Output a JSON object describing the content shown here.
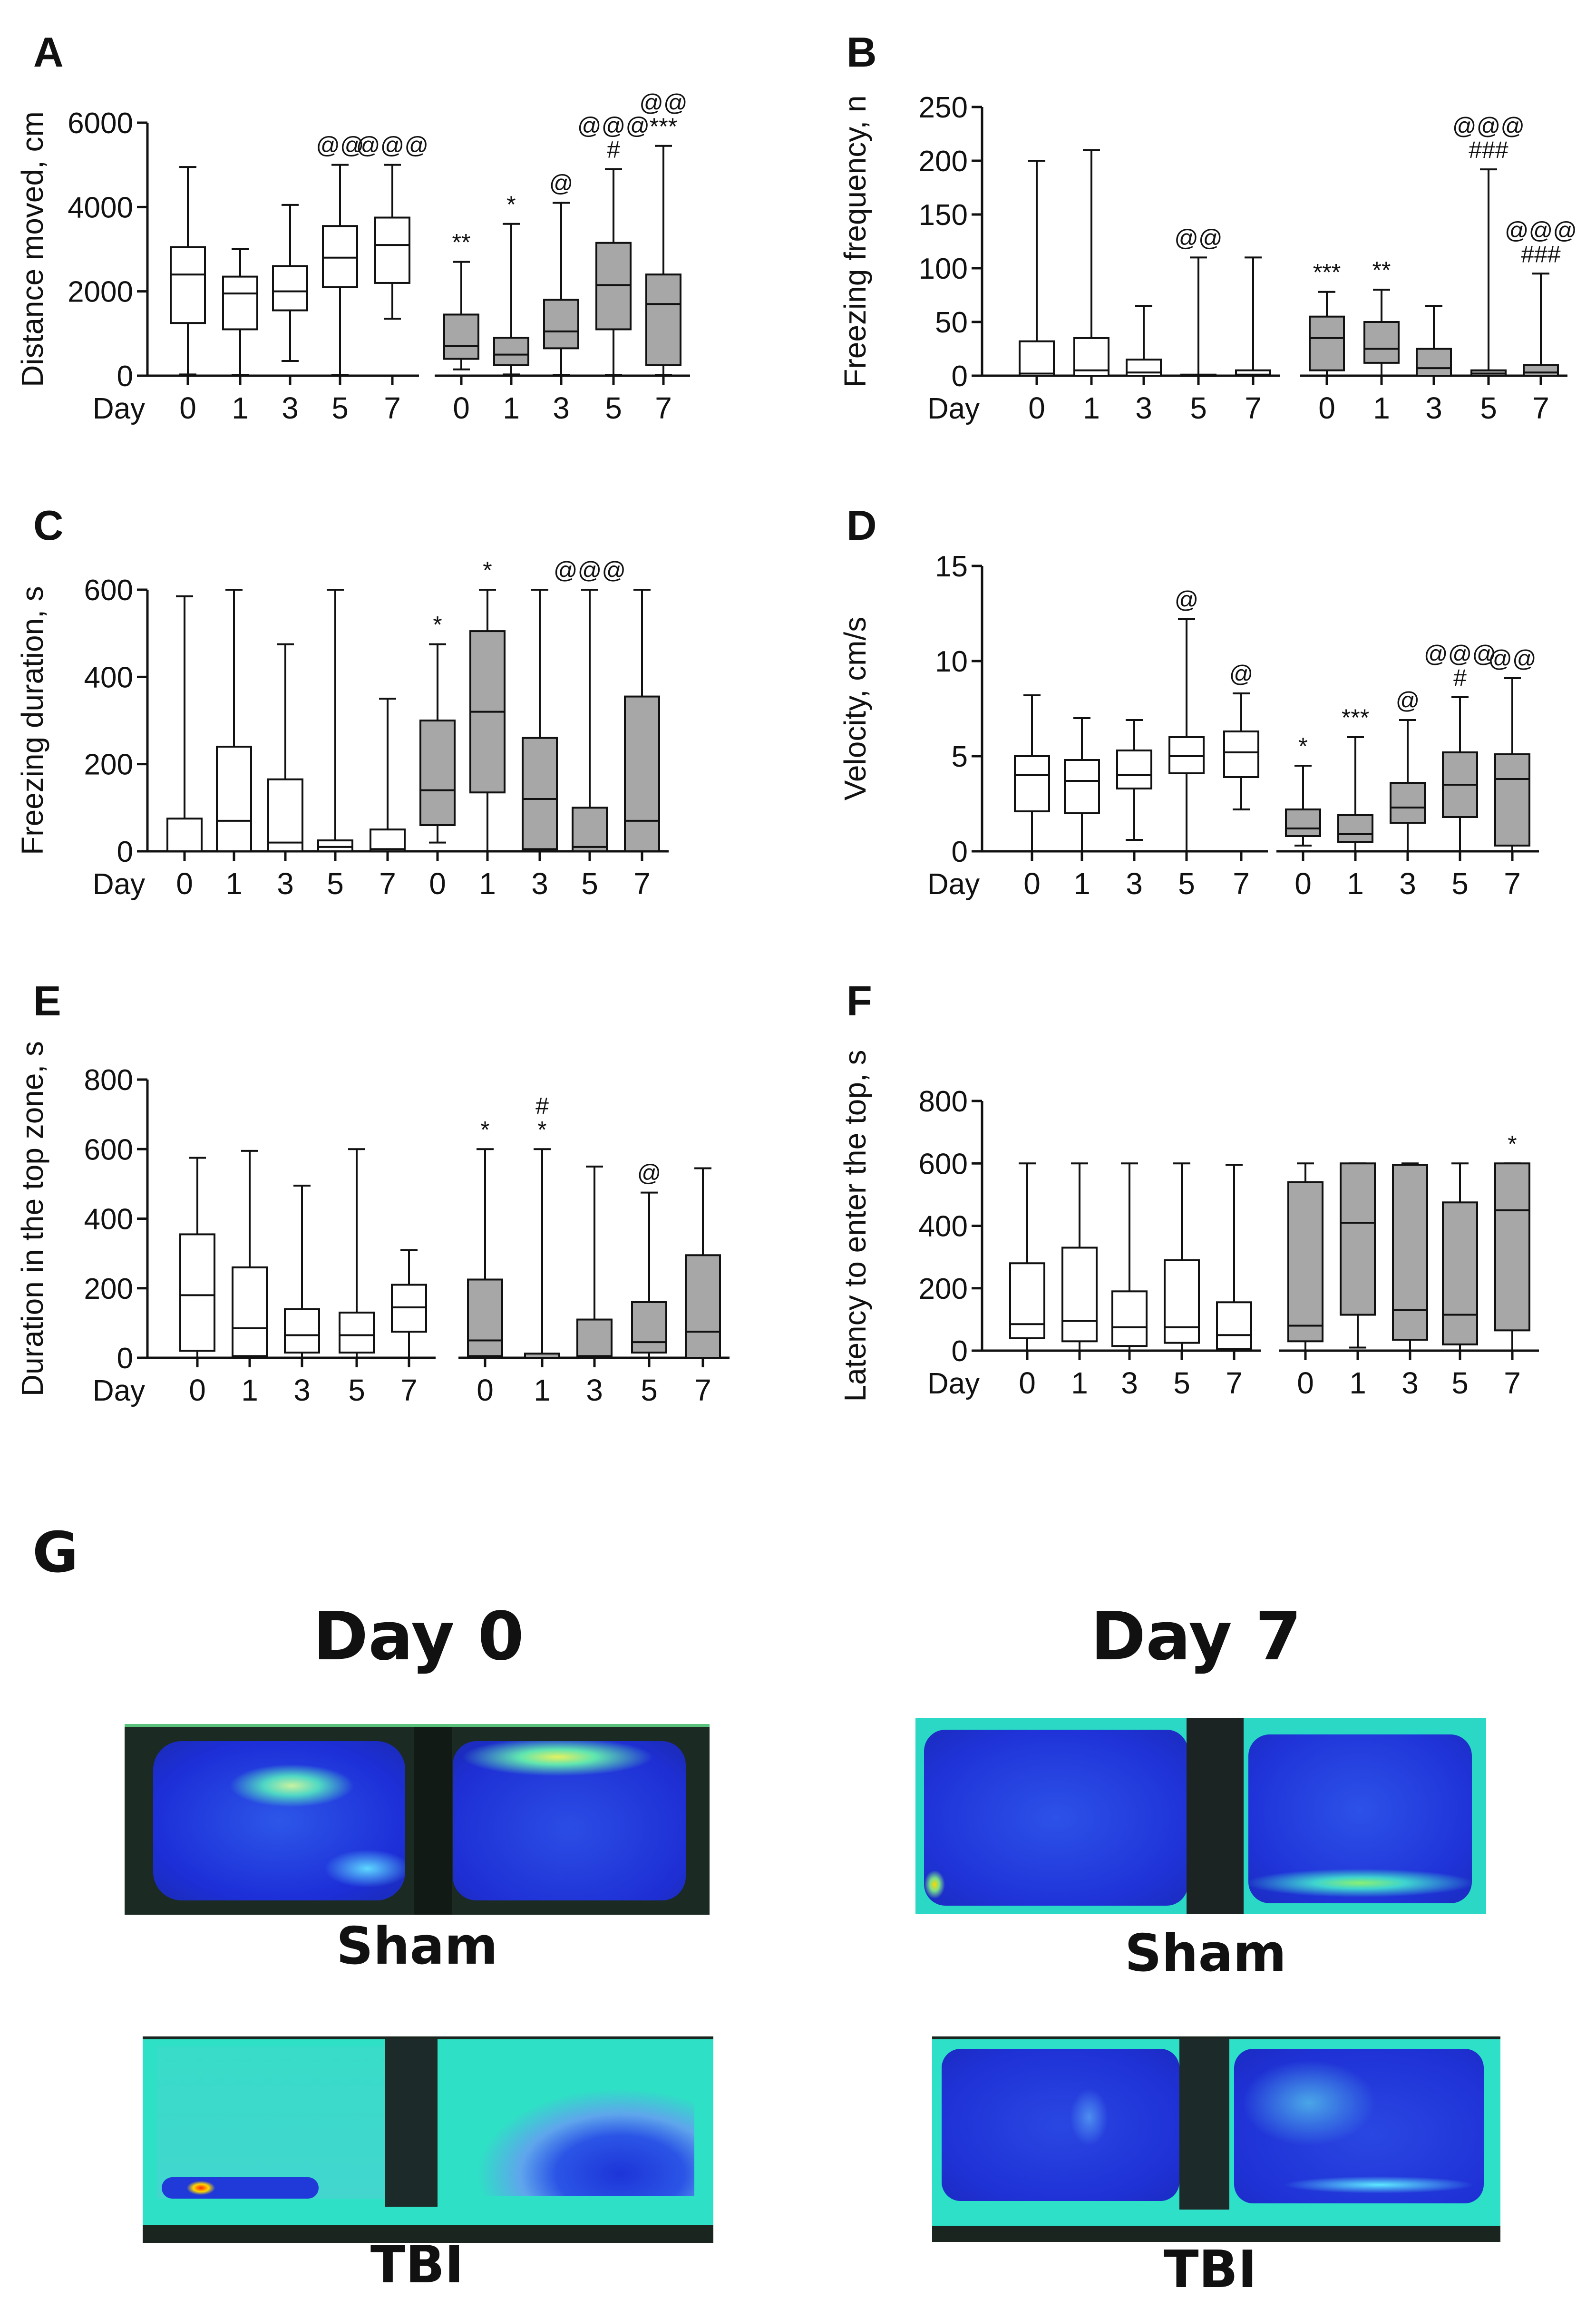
{
  "figure": {
    "panel_letters": [
      "A",
      "B",
      "C",
      "D",
      "E",
      "F",
      "G"
    ],
    "x_axis_word": "Day",
    "groups": [
      "Sham",
      "TBI"
    ]
  },
  "colors": {
    "sham_fill": "#ffffff",
    "tbi_fill": "#a7a7a7",
    "stroke": "#111111"
  },
  "chart_data": [
    {
      "type": "box",
      "panel": "A",
      "title": "",
      "xlabel": "Day",
      "ylabel": "Distance moved, cm",
      "ylim": [
        0,
        6000
      ],
      "yticks": [
        0,
        2000,
        4000,
        6000
      ],
      "categories": [
        "0",
        "1",
        "3",
        "5",
        "7",
        "0",
        "1",
        "3",
        "5",
        "7"
      ],
      "series": [
        {
          "name": "Sham",
          "boxes": [
            {
              "min": 30,
              "q1": 1250,
              "median": 2400,
              "q3": 3050,
              "max": 4950
            },
            {
              "min": 20,
              "q1": 1100,
              "median": 1950,
              "q3": 2350,
              "max": 3000
            },
            {
              "min": 350,
              "q1": 1550,
              "median": 2000,
              "q3": 2600,
              "max": 4050
            },
            {
              "min": 20,
              "q1": 2100,
              "median": 2800,
              "q3": 3550,
              "max": 5000
            },
            {
              "min": 1350,
              "q1": 2200,
              "median": 3100,
              "q3": 3750,
              "max": 5000
            }
          ]
        },
        {
          "name": "TBI",
          "boxes": [
            {
              "min": 150,
              "q1": 400,
              "median": 700,
              "q3": 1450,
              "max": 2700
            },
            {
              "min": 30,
              "q1": 250,
              "median": 500,
              "q3": 900,
              "max": 3600
            },
            {
              "min": 20,
              "q1": 650,
              "median": 1050,
              "q3": 1800,
              "max": 4100
            },
            {
              "min": 20,
              "q1": 1100,
              "median": 2150,
              "q3": 3150,
              "max": 4900
            },
            {
              "min": 20,
              "q1": 250,
              "median": 1700,
              "q3": 2400,
              "max": 5450
            }
          ]
        }
      ],
      "annotations": [
        {
          "box": 3,
          "lines": [
            "@@"
          ]
        },
        {
          "box": 4,
          "lines": [
            "@@@"
          ]
        },
        {
          "box": 5,
          "lines": [
            "**"
          ]
        },
        {
          "box": 6,
          "lines": [
            "*"
          ]
        },
        {
          "box": 7,
          "lines": [
            "@"
          ]
        },
        {
          "box": 8,
          "lines": [
            "@@@",
            "#"
          ]
        },
        {
          "box": 9,
          "lines": [
            "@@",
            "***"
          ]
        }
      ]
    },
    {
      "type": "box",
      "panel": "B",
      "title": "",
      "xlabel": "Day",
      "ylabel": "Freezing frequency, n",
      "ylim": [
        0,
        250
      ],
      "yticks": [
        0,
        50,
        100,
        150,
        200,
        250
      ],
      "categories": [
        "0",
        "1",
        "3",
        "5",
        "7",
        "0",
        "1",
        "3",
        "5",
        "7"
      ],
      "series": [
        {
          "name": "Sham",
          "boxes": [
            {
              "min": 0,
              "q1": 0,
              "median": 2,
              "q3": 32,
              "max": 200
            },
            {
              "min": 0,
              "q1": 0,
              "median": 5,
              "q3": 35,
              "max": 210
            },
            {
              "min": 0,
              "q1": 0,
              "median": 3,
              "q3": 15,
              "max": 65
            },
            {
              "min": 0,
              "q1": 0,
              "median": 0,
              "q3": 1,
              "max": 110
            },
            {
              "min": 0,
              "q1": 0,
              "median": 1,
              "q3": 5,
              "max": 110
            }
          ]
        },
        {
          "name": "TBI",
          "boxes": [
            {
              "min": 0,
              "q1": 5,
              "median": 35,
              "q3": 55,
              "max": 78
            },
            {
              "min": 0,
              "q1": 12,
              "median": 25,
              "q3": 50,
              "max": 80
            },
            {
              "min": 0,
              "q1": 0,
              "median": 7,
              "q3": 25,
              "max": 65
            },
            {
              "min": 0,
              "q1": 0,
              "median": 2,
              "q3": 5,
              "max": 192
            },
            {
              "min": 0,
              "q1": 0,
              "median": 3,
              "q3": 10,
              "max": 95
            }
          ]
        }
      ],
      "annotations": [
        {
          "box": 3,
          "lines": [
            "@@"
          ]
        },
        {
          "box": 5,
          "lines": [
            "***"
          ]
        },
        {
          "box": 6,
          "lines": [
            "**"
          ]
        },
        {
          "box": 8,
          "lines": [
            "@@@",
            "###"
          ]
        },
        {
          "box": 9,
          "lines": [
            "@@@",
            "###"
          ]
        }
      ]
    },
    {
      "type": "box",
      "panel": "C",
      "title": "",
      "xlabel": "Day",
      "ylabel": "Freezing duration, s",
      "ylim": [
        0,
        600
      ],
      "yticks": [
        0,
        200,
        400,
        600
      ],
      "categories": [
        "0",
        "1",
        "3",
        "5",
        "7",
        "0",
        "1",
        "3",
        "5",
        "7"
      ],
      "series": [
        {
          "name": "Sham",
          "boxes": [
            {
              "min": 0,
              "q1": 0,
              "median": 0,
              "q3": 75,
              "max": 585
            },
            {
              "min": 0,
              "q1": 0,
              "median": 70,
              "q3": 240,
              "max": 600
            },
            {
              "min": 0,
              "q1": 0,
              "median": 20,
              "q3": 165,
              "max": 475
            },
            {
              "min": 0,
              "q1": 0,
              "median": 10,
              "q3": 25,
              "max": 600
            },
            {
              "min": 0,
              "q1": 0,
              "median": 5,
              "q3": 50,
              "max": 350
            }
          ]
        },
        {
          "name": "TBI",
          "boxes": [
            {
              "min": 20,
              "q1": 60,
              "median": 140,
              "q3": 300,
              "max": 475
            },
            {
              "min": 0,
              "q1": 135,
              "median": 320,
              "q3": 505,
              "max": 600
            },
            {
              "min": 0,
              "q1": 5,
              "median": 120,
              "q3": 260,
              "max": 600
            },
            {
              "min": 0,
              "q1": 0,
              "median": 10,
              "q3": 100,
              "max": 600
            },
            {
              "min": 0,
              "q1": 0,
              "median": 70,
              "q3": 355,
              "max": 600
            }
          ]
        }
      ],
      "annotations": [
        {
          "box": 5,
          "lines": [
            "*"
          ]
        },
        {
          "box": 6,
          "lines": [
            "*"
          ]
        },
        {
          "box": 8,
          "lines": [
            "@@@"
          ]
        }
      ]
    },
    {
      "type": "box",
      "panel": "D",
      "title": "",
      "xlabel": "Day",
      "ylabel": "Velocity, cm/s",
      "ylim": [
        0,
        15
      ],
      "yticks": [
        0,
        5,
        10,
        15
      ],
      "categories": [
        "0",
        "1",
        "3",
        "5",
        "7",
        "0",
        "1",
        "3",
        "5",
        "7"
      ],
      "series": [
        {
          "name": "Sham",
          "boxes": [
            {
              "min": 0,
              "q1": 2.1,
              "median": 4.0,
              "q3": 5.0,
              "max": 8.2
            },
            {
              "min": 0,
              "q1": 2.0,
              "median": 3.7,
              "q3": 4.8,
              "max": 7.0
            },
            {
              "min": 0.6,
              "q1": 3.3,
              "median": 4.0,
              "q3": 5.3,
              "max": 6.9
            },
            {
              "min": 0,
              "q1": 4.1,
              "median": 5.0,
              "q3": 6.0,
              "max": 12.2
            },
            {
              "min": 2.2,
              "q1": 3.9,
              "median": 5.2,
              "q3": 6.3,
              "max": 8.3
            }
          ]
        },
        {
          "name": "TBI",
          "boxes": [
            {
              "min": 0.3,
              "q1": 0.8,
              "median": 1.2,
              "q3": 2.2,
              "max": 4.5
            },
            {
              "min": 0,
              "q1": 0.5,
              "median": 0.9,
              "q3": 1.9,
              "max": 6.0
            },
            {
              "min": 0,
              "q1": 1.5,
              "median": 2.3,
              "q3": 3.6,
              "max": 6.9
            },
            {
              "min": 0,
              "q1": 1.8,
              "median": 3.5,
              "q3": 5.2,
              "max": 8.1
            },
            {
              "min": 0,
              "q1": 0.3,
              "median": 3.8,
              "q3": 5.1,
              "max": 9.1
            }
          ]
        }
      ],
      "annotations": [
        {
          "box": 3,
          "lines": [
            "@"
          ]
        },
        {
          "box": 4,
          "lines": [
            "@"
          ]
        },
        {
          "box": 5,
          "lines": [
            "*"
          ]
        },
        {
          "box": 6,
          "lines": [
            "***"
          ]
        },
        {
          "box": 7,
          "lines": [
            "@"
          ]
        },
        {
          "box": 8,
          "lines": [
            "@@@",
            "#"
          ]
        },
        {
          "box": 9,
          "lines": [
            "@@"
          ]
        }
      ]
    },
    {
      "type": "box",
      "panel": "E",
      "title": "",
      "xlabel": "Day",
      "ylabel": "Duration in the top zone, s",
      "ylim": [
        0,
        800
      ],
      "yticks": [
        0,
        200,
        400,
        600,
        800
      ],
      "categories": [
        "0",
        "1",
        "3",
        "5",
        "7",
        "0",
        "1",
        "3",
        "5",
        "7"
      ],
      "series": [
        {
          "name": "Sham",
          "boxes": [
            {
              "min": 0,
              "q1": 20,
              "median": 180,
              "q3": 355,
              "max": 575
            },
            {
              "min": 0,
              "q1": 5,
              "median": 85,
              "q3": 260,
              "max": 595
            },
            {
              "min": 0,
              "q1": 15,
              "median": 65,
              "q3": 140,
              "max": 495
            },
            {
              "min": 0,
              "q1": 15,
              "median": 65,
              "q3": 130,
              "max": 600
            },
            {
              "min": 0,
              "q1": 75,
              "median": 145,
              "q3": 210,
              "max": 310
            }
          ]
        },
        {
          "name": "TBI",
          "boxes": [
            {
              "min": 0,
              "q1": 5,
              "median": 50,
              "q3": 225,
              "max": 600
            },
            {
              "min": 0,
              "q1": 0,
              "median": 0,
              "q3": 12,
              "max": 600
            },
            {
              "min": 0,
              "q1": 0,
              "median": 5,
              "q3": 110,
              "max": 550
            },
            {
              "min": 0,
              "q1": 15,
              "median": 45,
              "q3": 160,
              "max": 475
            },
            {
              "min": 0,
              "q1": 0,
              "median": 75,
              "q3": 295,
              "max": 545
            }
          ]
        }
      ],
      "annotations": [
        {
          "box": 5,
          "lines": [
            "*"
          ]
        },
        {
          "box": 6,
          "lines": [
            "#",
            "*"
          ]
        },
        {
          "box": 8,
          "lines": [
            "@"
          ]
        }
      ]
    },
    {
      "type": "box",
      "panel": "F",
      "title": "",
      "xlabel": "Day",
      "ylabel": "Latency to enter the top, s",
      "ylim": [
        0,
        800
      ],
      "yticks": [
        0,
        200,
        400,
        600,
        800
      ],
      "categories": [
        "0",
        "1",
        "3",
        "5",
        "7",
        "0",
        "1",
        "3",
        "5",
        "7"
      ],
      "series": [
        {
          "name": "Sham",
          "boxes": [
            {
              "min": 0,
              "q1": 40,
              "median": 85,
              "q3": 280,
              "max": 600
            },
            {
              "min": 0,
              "q1": 30,
              "median": 95,
              "q3": 330,
              "max": 600
            },
            {
              "min": 0,
              "q1": 15,
              "median": 75,
              "q3": 190,
              "max": 600
            },
            {
              "min": 0,
              "q1": 25,
              "median": 75,
              "q3": 290,
              "max": 600
            },
            {
              "min": 0,
              "q1": 5,
              "median": 50,
              "q3": 155,
              "max": 595
            }
          ]
        },
        {
          "name": "TBI",
          "boxes": [
            {
              "min": 0,
              "q1": 30,
              "median": 80,
              "q3": 540,
              "max": 600
            },
            {
              "min": 10,
              "q1": 115,
              "median": 410,
              "q3": 600,
              "max": 600
            },
            {
              "min": 0,
              "q1": 35,
              "median": 130,
              "q3": 595,
              "max": 600
            },
            {
              "min": 0,
              "q1": 20,
              "median": 115,
              "q3": 475,
              "max": 600
            },
            {
              "min": 0,
              "q1": 65,
              "median": 450,
              "q3": 600,
              "max": 600
            }
          ]
        }
      ],
      "annotations": [
        {
          "box": 9,
          "lines": [
            "*"
          ]
        }
      ]
    }
  ],
  "heatmaps": {
    "day0_title": "Day 0",
    "day7_title": "Day 7",
    "sham_label": "Sham",
    "tbi_label": "TBI"
  }
}
